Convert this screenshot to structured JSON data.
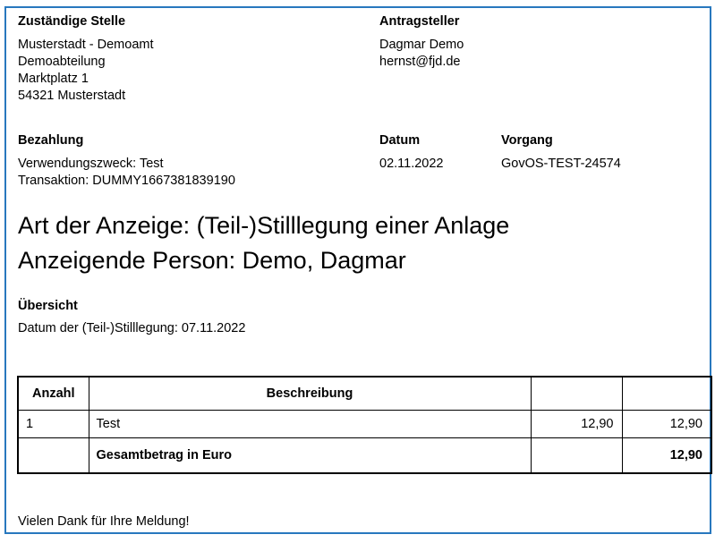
{
  "page": {
    "border_color": "#2878be"
  },
  "agency": {
    "label": "Zuständige Stelle",
    "line1": "Musterstadt - Demoamt",
    "line2": "Demoabteilung",
    "line3": "Marktplatz 1",
    "line4": "54321 Musterstadt"
  },
  "applicant": {
    "label": "Antragsteller",
    "name": "Dagmar Demo",
    "email": "hernst@fjd.de"
  },
  "payment": {
    "label": "Bezahlung",
    "purpose": "Verwendungszweck: Test",
    "transaction": "Transaktion: DUMMY1667381839190"
  },
  "date": {
    "label": "Datum",
    "value": "02.11.2022"
  },
  "process": {
    "label": "Vorgang",
    "value": "GovOS-TEST-24574"
  },
  "heading": {
    "line1": "Art der Anzeige: (Teil-)Stilllegung einer Anlage",
    "line2": "Anzeigende Person: Demo, Dagmar"
  },
  "overview": {
    "label": "Übersicht",
    "detail": "Datum der (Teil-)Stilllegung: 07.11.2022"
  },
  "items_table": {
    "headers": [
      "Anzahl",
      "Beschreibung",
      "",
      ""
    ],
    "rows": [
      {
        "anzahl": "1",
        "beschreibung": "Test",
        "einzelbetrag": "12,90",
        "gesamtbetrag": "12,90"
      }
    ],
    "total_label": "Gesamtbetrag in Euro",
    "total_value": "12,90"
  },
  "footer": {
    "thanks": "Vielen Dank für Ihre Meldung!"
  }
}
